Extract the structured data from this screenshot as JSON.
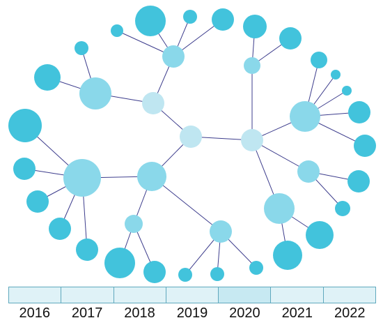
{
  "colors": {
    "dark": "#42c3dc",
    "medium": "#8ad8ea",
    "light": "#bfe6f1",
    "edge": "#3c3c8c",
    "bar_fill": "#dff2f7",
    "bar_active": "#c7e9f2",
    "bar_border": "#5fa8bd"
  },
  "timeline": {
    "years": [
      {
        "label": "2016",
        "active": false
      },
      {
        "label": "2017",
        "active": false
      },
      {
        "label": "2018",
        "active": false
      },
      {
        "label": "2019",
        "active": false
      },
      {
        "label": "2020",
        "active": true
      },
      {
        "label": "2021",
        "active": false
      },
      {
        "label": "2022",
        "active": false
      }
    ]
  }
}
